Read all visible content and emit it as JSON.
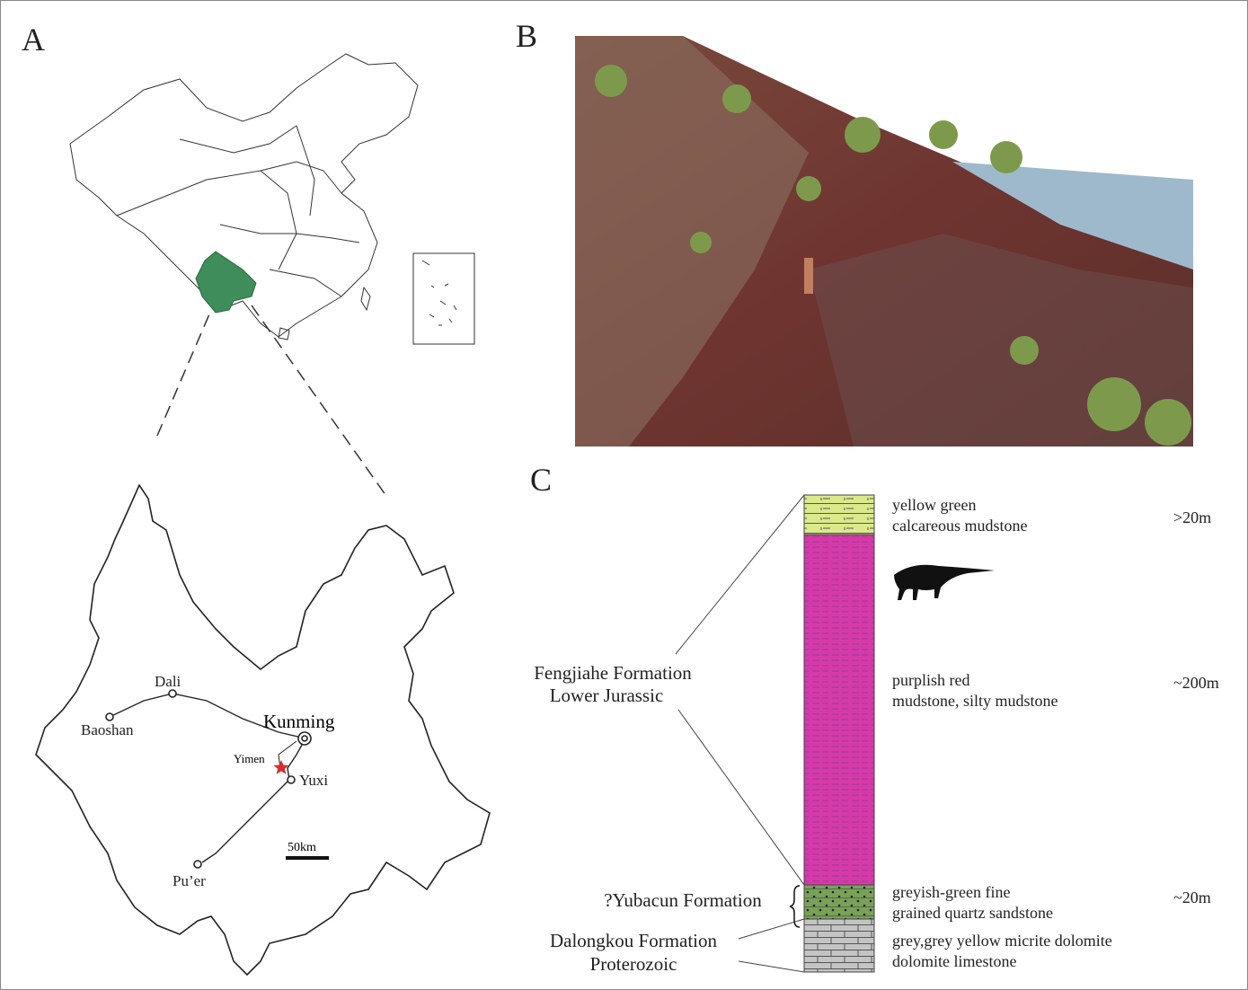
{
  "panels": {
    "a": "A",
    "b": "B",
    "c": "C"
  },
  "map": {
    "cities": {
      "dali": "Dali",
      "baoshan": "Baoshan",
      "kunming": "Kunming",
      "yimen": "Yimen",
      "yuxi": "Yuxi",
      "puer": "Pu’er"
    },
    "scale": "50km"
  },
  "column": {
    "layers": [
      {
        "lithology": [
          "yellow green",
          "calcareous mudstone"
        ],
        "thickness": ">20m"
      },
      {
        "lithology": [
          "purplish red",
          "mudstone, silty mudstone"
        ],
        "thickness": "~200m"
      },
      {
        "lithology": [
          "greyish-green fine",
          "grained  quartz sandstone"
        ],
        "thickness": "~20m"
      },
      {
        "lithology": [
          "grey,grey yellow micrite dolomite",
          "dolomite limestone"
        ]
      }
    ],
    "formations": [
      [
        "Fengjiahe Formation",
        "Lower Jurassic"
      ],
      [
        "?Yubacun  Formation"
      ],
      [
        "Dalongkou Formation",
        "Proterozoic"
      ]
    ]
  }
}
